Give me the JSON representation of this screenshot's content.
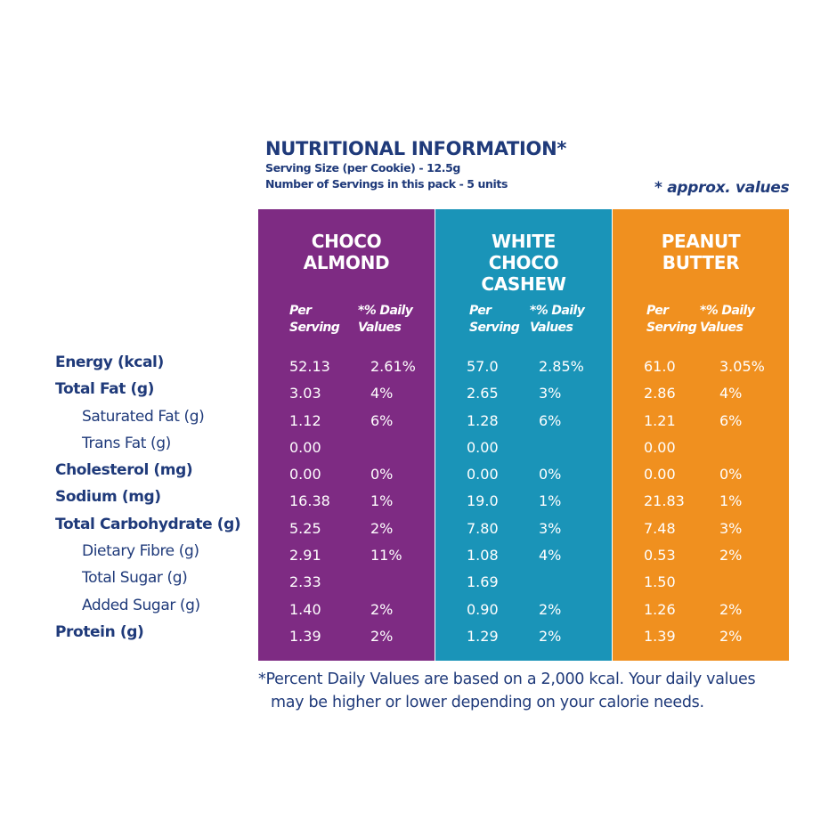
{
  "header": {
    "title": "NUTRITIONAL INFORMATION*",
    "serving_size": "Serving Size (per Cookie) - 12.5g",
    "servings": "Number of Servings in this pack - 5 units"
  },
  "approx": "* approx. values",
  "subheads": {
    "per_serving": [
      "Per",
      "Serving"
    ],
    "daily": [
      "*% Daily",
      "Values"
    ]
  },
  "labels": [
    {
      "text": "Energy (kcal)",
      "style": "main"
    },
    {
      "text": "Total Fat (g)",
      "style": "main"
    },
    {
      "text": "Saturated Fat (g)",
      "style": "indent"
    },
    {
      "text": "Trans Fat (g)",
      "style": "indent"
    },
    {
      "text": "Cholesterol (mg)",
      "style": "main"
    },
    {
      "text": "Sodium (mg)",
      "style": "main"
    },
    {
      "text": "Total Carbohydrate (g)",
      "style": "main"
    },
    {
      "text": "Dietary Fibre (g)",
      "style": "indent"
    },
    {
      "text": "Total Sugar (g)",
      "style": "indent"
    },
    {
      "text": "Added Sugar (g)",
      "style": "indent"
    },
    {
      "text": "Protein (g)",
      "style": "main"
    }
  ],
  "columns": [
    {
      "name": [
        "CHOCO",
        "ALMOND"
      ],
      "color": "#7e2b83",
      "rows": [
        [
          "52.13",
          "2.61%"
        ],
        [
          "3.03",
          "4%"
        ],
        [
          "1.12",
          "6%"
        ],
        [
          "0.00",
          ""
        ],
        [
          "0.00",
          "0%"
        ],
        [
          "16.38",
          "1%"
        ],
        [
          "5.25",
          "2%"
        ],
        [
          "2.91",
          "11%"
        ],
        [
          "2.33",
          ""
        ],
        [
          "1.40",
          "2%"
        ],
        [
          "1.39",
          "2%"
        ]
      ]
    },
    {
      "name": [
        "WHITE",
        "CHOCO",
        "CASHEW"
      ],
      "color": "#1a94b8",
      "rows": [
        [
          "57.0",
          "2.85%"
        ],
        [
          "2.65",
          "3%"
        ],
        [
          "1.28",
          "6%"
        ],
        [
          "0.00",
          ""
        ],
        [
          "0.00",
          "0%"
        ],
        [
          "19.0",
          "1%"
        ],
        [
          "7.80",
          "3%"
        ],
        [
          "1.08",
          "4%"
        ],
        [
          "1.69",
          ""
        ],
        [
          "0.90",
          "2%"
        ],
        [
          "1.29",
          "2%"
        ]
      ]
    },
    {
      "name": [
        "PEANUT",
        "BUTTER"
      ],
      "color": "#f0901f",
      "rows": [
        [
          "61.0",
          "3.05%"
        ],
        [
          "2.86",
          "4%"
        ],
        [
          "1.21",
          "6%"
        ],
        [
          "0.00",
          ""
        ],
        [
          "0.00",
          "0%"
        ],
        [
          "21.83",
          "1%"
        ],
        [
          "7.48",
          "3%"
        ],
        [
          "0.53",
          "2%"
        ],
        [
          "1.50",
          ""
        ],
        [
          "1.26",
          "2%"
        ],
        [
          "1.39",
          "2%"
        ]
      ]
    }
  ],
  "footnote": {
    "line1": "*Percent Daily Values are based on a 2,000 kcal. Your daily values",
    "line2": "may be higher or lower depending on your calorie needs."
  }
}
